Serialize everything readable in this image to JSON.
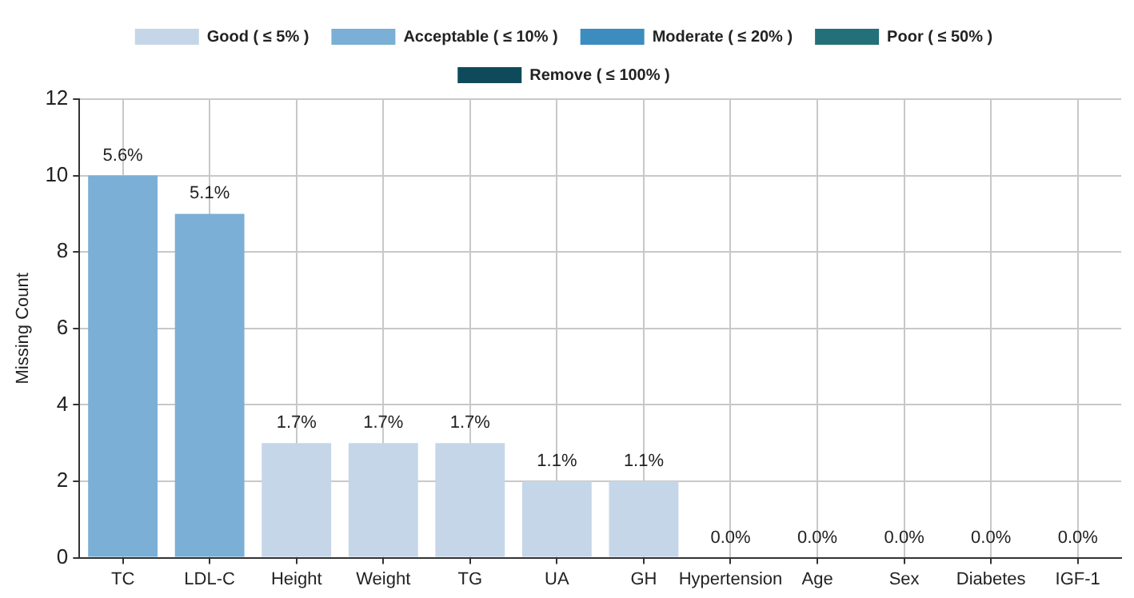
{
  "chart_data": {
    "type": "bar",
    "ylabel": "Missing Count",
    "categories": [
      "TC",
      "LDL-C",
      "Height",
      "Weight",
      "TG",
      "UA",
      "GH",
      "Hypertension",
      "Age",
      "Sex",
      "Diabetes",
      "IGF-1"
    ],
    "series": [
      {
        "name": "Good ( ≤ 5% )",
        "color": "#c5d6e8",
        "values": [
          null,
          null,
          3,
          3,
          3,
          2,
          2,
          0,
          0,
          0,
          0,
          0
        ]
      },
      {
        "name": "Acceptable ( ≤ 10% )",
        "color": "#7bafd6",
        "values": [
          10,
          9,
          null,
          null,
          null,
          null,
          null,
          null,
          null,
          null,
          null,
          null
        ]
      },
      {
        "name": "Moderate ( ≤ 20% )",
        "color": "#3d8cc0",
        "values": [
          null,
          null,
          null,
          null,
          null,
          null,
          null,
          null,
          null,
          null,
          null,
          null
        ]
      },
      {
        "name": "Poor ( ≤ 50% )",
        "color": "#23707a",
        "values": [
          null,
          null,
          null,
          null,
          null,
          null,
          null,
          null,
          null,
          null,
          null,
          null
        ]
      },
      {
        "name": "Remove ( ≤ 100% )",
        "color": "#0f4a5a",
        "values": [
          null,
          null,
          null,
          null,
          null,
          null,
          null,
          null,
          null,
          null,
          null,
          null
        ]
      }
    ],
    "annotations": [
      {
        "text": "5.6%",
        "x": "TC",
        "y": 10
      },
      {
        "text": "5.1%",
        "x": "LDL-C",
        "y": 9
      },
      {
        "text": "1.7%",
        "x": "Height",
        "y": 3
      },
      {
        "text": "1.7%",
        "x": "Weight",
        "y": 3
      },
      {
        "text": "1.7%",
        "x": "TG",
        "y": 3
      },
      {
        "text": "1.1%",
        "x": "UA",
        "y": 2
      },
      {
        "text": "1.1%",
        "x": "GH",
        "y": 2
      },
      {
        "text": "0.0%",
        "x": "Hypertension",
        "y": 0
      },
      {
        "text": "0.0%",
        "x": "Age",
        "y": 0
      },
      {
        "text": "0.0%",
        "x": "Sex",
        "y": 0
      },
      {
        "text": "0.0%",
        "x": "Diabetes",
        "y": 0
      },
      {
        "text": "0.0%",
        "x": "IGF-1",
        "y": 0
      }
    ],
    "ylim": [
      0,
      12
    ],
    "yticks": [
      0,
      2,
      4,
      6,
      8,
      10,
      12
    ],
    "grid": true,
    "legend": "top"
  }
}
